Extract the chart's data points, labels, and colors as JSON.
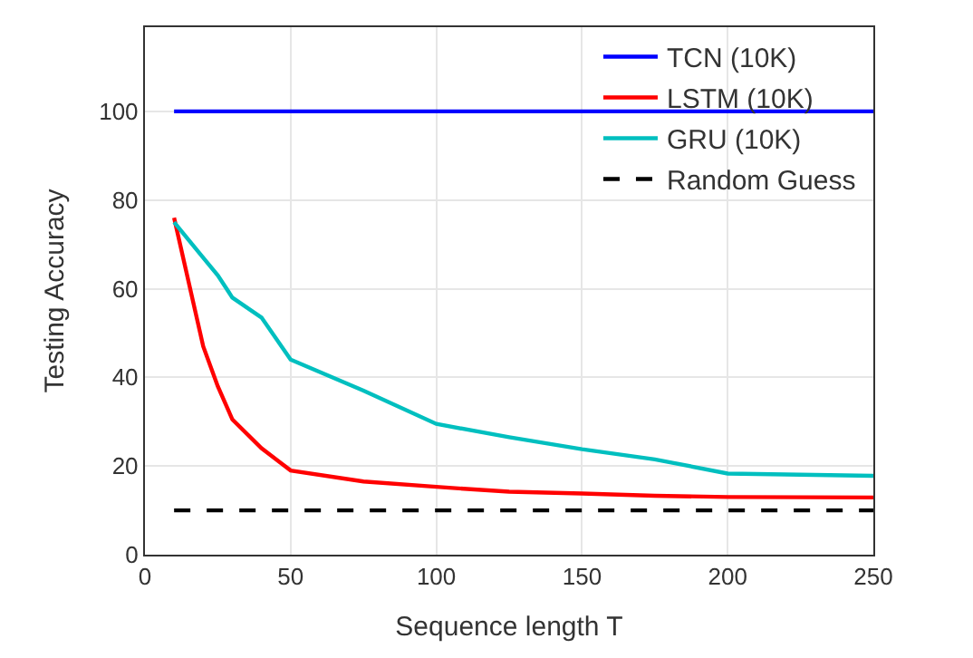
{
  "chart_data": {
    "type": "line",
    "xlabel": "Sequence length T",
    "ylabel": "Testing Accuracy",
    "xlim": [
      0,
      250
    ],
    "ylim": [
      0,
      119
    ],
    "xticks": [
      0,
      50,
      100,
      150,
      200,
      250
    ],
    "yticks": [
      0,
      20,
      40,
      60,
      80,
      100
    ],
    "grid": true,
    "legend": "top right",
    "marker": "none",
    "series": [
      {
        "name": "TCN (10K)",
        "color": "#0000ff",
        "x": [
          10,
          250
        ],
        "values": [
          100,
          100
        ]
      },
      {
        "name": "LSTM (10K)",
        "color": "#ff0000",
        "x": [
          10,
          20,
          25,
          30,
          40,
          50,
          75,
          100,
          125,
          150,
          175,
          200,
          250
        ],
        "values": [
          76,
          47,
          38,
          30.5,
          24,
          19,
          16.5,
          15.3,
          14.2,
          13.8,
          13.3,
          13,
          12.9
        ]
      },
      {
        "name": "GRU (10K)",
        "color": "#00bfbf",
        "x": [
          10,
          20,
          25,
          30,
          40,
          50,
          75,
          100,
          125,
          150,
          175,
          200,
          250
        ],
        "values": [
          75,
          67,
          63,
          58,
          53.5,
          44,
          37,
          29.5,
          26.5,
          23.8,
          21.5,
          18.3,
          17.8
        ]
      },
      {
        "name": "Random Guess",
        "color": "#000000",
        "line_style": "dashed",
        "x": [
          10,
          250
        ],
        "values": [
          10,
          10
        ]
      }
    ]
  }
}
